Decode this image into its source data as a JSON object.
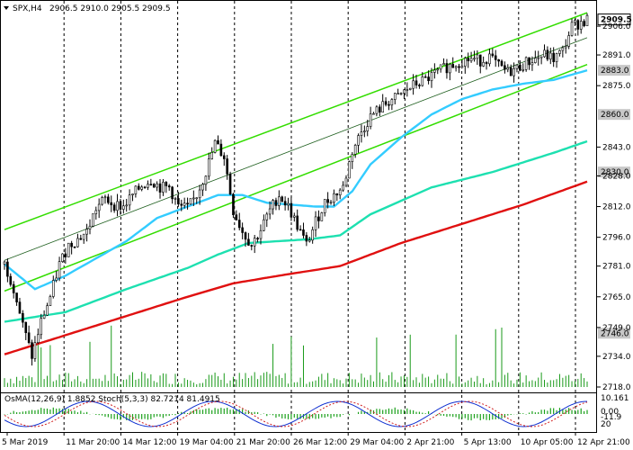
{
  "header": {
    "symbol": "SPX,H4",
    "ohlc": "2906.5 2910.0 2905.5 2909.5"
  },
  "chart_data": {
    "type": "candlestick",
    "title": "",
    "x_labels": [
      "5 Mar 2019",
      "11 Mar 20:00",
      "14 Mar 12:00",
      "19 Mar 04:00",
      "21 Mar 20:00",
      "26 Mar 12:00",
      "29 Mar 04:00",
      "2 Apr 21:00",
      "5 Apr 13:00",
      "10 Apr 05:00",
      "12 Apr 21:00"
    ],
    "price_axis": {
      "ticks": [
        2906.0,
        2891.0,
        2875.0,
        2843.0,
        2828.0,
        2812.0,
        2796.0,
        2781.0,
        2765.0,
        2749.0,
        2734.0,
        2718.0
      ],
      "range": [
        2718.0,
        2914.0
      ],
      "highlighted_levels": [
        {
          "value": 2909.5,
          "label": "2909.5",
          "style": "current"
        },
        {
          "value": 2883.0,
          "label": "2883.0",
          "style": "level"
        },
        {
          "value": 2860.0,
          "label": "2860.0",
          "style": "level"
        },
        {
          "value": 2830.0,
          "label": "2830.0",
          "style": "level"
        },
        {
          "value": 2746.0,
          "label": "2746.0",
          "style": "level"
        }
      ]
    },
    "close_path": [
      [
        0,
        2782
      ],
      [
        3,
        2770
      ],
      [
        6,
        2750
      ],
      [
        9,
        2734
      ],
      [
        12,
        2752
      ],
      [
        15,
        2765
      ],
      [
        18,
        2782
      ],
      [
        21,
        2792
      ],
      [
        24,
        2795
      ],
      [
        27,
        2799
      ],
      [
        30,
        2811
      ],
      [
        33,
        2816
      ],
      [
        36,
        2813
      ],
      [
        39,
        2812
      ],
      [
        42,
        2818
      ],
      [
        45,
        2823
      ],
      [
        48,
        2826
      ],
      [
        51,
        2822
      ],
      [
        54,
        2822
      ],
      [
        57,
        2812
      ],
      [
        60,
        2811
      ],
      [
        63,
        2818
      ],
      [
        66,
        2830
      ],
      [
        69,
        2845
      ],
      [
        72,
        2838
      ],
      [
        75,
        2810
      ],
      [
        78,
        2799
      ],
      [
        81,
        2792
      ],
      [
        84,
        2800
      ],
      [
        87,
        2810
      ],
      [
        90,
        2818
      ],
      [
        93,
        2812
      ],
      [
        96,
        2802
      ],
      [
        99,
        2792
      ],
      [
        102,
        2804
      ],
      [
        105,
        2814
      ],
      [
        108,
        2818
      ],
      [
        111,
        2822
      ],
      [
        114,
        2841
      ],
      [
        117,
        2851
      ],
      [
        120,
        2859
      ],
      [
        123,
        2863
      ],
      [
        126,
        2867
      ],
      [
        129,
        2869
      ],
      [
        132,
        2873
      ],
      [
        135,
        2876
      ],
      [
        138,
        2878
      ],
      [
        141,
        2881
      ],
      [
        144,
        2884
      ],
      [
        147,
        2886
      ],
      [
        150,
        2888
      ],
      [
        153,
        2889
      ],
      [
        156,
        2888
      ],
      [
        159,
        2890
      ],
      [
        162,
        2885
      ],
      [
        165,
        2882
      ],
      [
        168,
        2884
      ],
      [
        171,
        2887
      ],
      [
        174,
        2889
      ],
      [
        177,
        2891
      ],
      [
        180,
        2889
      ],
      [
        183,
        2893
      ],
      [
        186,
        2906
      ],
      [
        189,
        2908
      ],
      [
        191,
        2909.5
      ]
    ],
    "moving_averages": [
      {
        "color": "#33ccff",
        "points": [
          [
            0,
            2782
          ],
          [
            10,
            2769
          ],
          [
            20,
            2776
          ],
          [
            30,
            2785
          ],
          [
            40,
            2794
          ],
          [
            50,
            2806
          ],
          [
            60,
            2812
          ],
          [
            70,
            2818
          ],
          [
            78,
            2818
          ],
          [
            86,
            2814
          ],
          [
            94,
            2813
          ],
          [
            102,
            2812
          ],
          [
            108,
            2812
          ],
          [
            114,
            2820
          ],
          [
            120,
            2834
          ],
          [
            130,
            2848
          ],
          [
            140,
            2860
          ],
          [
            150,
            2868
          ],
          [
            160,
            2873
          ],
          [
            170,
            2876
          ],
          [
            180,
            2878
          ],
          [
            191,
            2883
          ]
        ]
      },
      {
        "color": "#1de0b0",
        "points": [
          [
            0,
            2752
          ],
          [
            20,
            2757
          ],
          [
            40,
            2769
          ],
          [
            60,
            2780
          ],
          [
            70,
            2787
          ],
          [
            80,
            2793
          ],
          [
            100,
            2795
          ],
          [
            110,
            2797
          ],
          [
            120,
            2808
          ],
          [
            140,
            2822
          ],
          [
            160,
            2830
          ],
          [
            180,
            2840
          ],
          [
            191,
            2846
          ]
        ]
      },
      {
        "color": "#e01010",
        "points": [
          [
            0,
            2735
          ],
          [
            20,
            2745
          ],
          [
            40,
            2755
          ],
          [
            60,
            2765
          ],
          [
            75,
            2772
          ],
          [
            90,
            2776
          ],
          [
            110,
            2781
          ],
          [
            130,
            2793
          ],
          [
            150,
            2803
          ],
          [
            170,
            2813
          ],
          [
            191,
            2825
          ]
        ]
      }
    ],
    "channel": {
      "color": "#33dd00",
      "upper": [
        [
          0,
          2800
        ],
        [
          191,
          2913
        ]
      ],
      "lower": [
        [
          0,
          2768
        ],
        [
          191,
          2886
        ]
      ],
      "middle": [
        [
          0,
          2784
        ],
        [
          191,
          2900
        ]
      ]
    },
    "osma_panel": {
      "label": "OsMA(12,26,9) 1.8852  Stoch(5,3,3) 82.7214 81.4915",
      "right_labels": [
        "10.161",
        "0.00",
        "-11.9",
        "20"
      ]
    }
  }
}
